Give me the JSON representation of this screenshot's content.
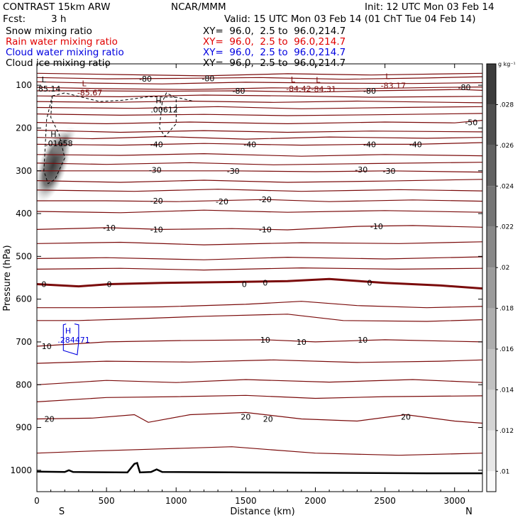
{
  "header": {
    "model": "CONTRAST 15km ARW",
    "org": "NCAR/MMM",
    "init": "Init: 12 UTC Mon 03 Feb 14",
    "fcst_label": "Fcst:",
    "fcst_value": "3 h",
    "valid": "Valid: 15 UTC Mon 03 Feb 14 (01 ChT Tue 04 Feb 14)",
    "fields": [
      {
        "name": "Snow mixing ratio",
        "xy": "XY=  96.0,  2.5 to  96.0,214.7",
        "color": "#000000"
      },
      {
        "name": "Rain water mixing ratio",
        "xy": "XY=  96.0,  2.5 to  96.0,214.7",
        "color": "#e00000"
      },
      {
        "name": "Cloud water mixing ratio",
        "xy": "XY=  96.0,  2.5 to  96.0,214.7",
        "color": "#0000e0"
      },
      {
        "name": "Cloud ice mixing ratio",
        "xy": "XY=  96.0,  2.5 to  96.0,214.7",
        "color": "#000000"
      }
    ]
  },
  "chart_data": {
    "type": "contour cross-section",
    "xlabel": "Distance (km)",
    "ylabel": "Pressure (hPa)",
    "xlim": [
      0,
      3200
    ],
    "ylim": [
      1050,
      50
    ],
    "x_ticks": [
      "0",
      "500",
      "1000",
      "1500",
      "2000",
      "2500",
      "3000"
    ],
    "y_ticks": [
      "100",
      "200",
      "300",
      "400",
      "500",
      "600",
      "700",
      "800",
      "900",
      "1000"
    ],
    "end_labels": {
      "left": "S",
      "right": "N"
    },
    "colorbar": {
      "unit": "g kg⁻¹",
      "ticks": [
        ".028",
        ".026",
        ".024",
        ".022",
        ".02",
        ".018",
        ".016",
        ".014",
        ".012",
        ".01"
      ]
    },
    "isotherm_color": "#7a0a0a",
    "isotherm_labels": [
      {
        "text": "-80",
        "x": 780,
        "p": 85
      },
      {
        "text": "-80",
        "x": 1230,
        "p": 84
      },
      {
        "text": "-80",
        "x": 1450,
        "p": 113
      },
      {
        "text": "-80",
        "x": 2390,
        "p": 113
      },
      {
        "text": "-80",
        "x": 3070,
        "p": 105
      },
      {
        "text": "-50",
        "x": 3120,
        "p": 187
      },
      {
        "text": "-40",
        "x": 860,
        "p": 238
      },
      {
        "text": "-40",
        "x": 1530,
        "p": 238
      },
      {
        "text": "-40",
        "x": 2390,
        "p": 238
      },
      {
        "text": "-40",
        "x": 2720,
        "p": 238
      },
      {
        "text": "-30",
        "x": 850,
        "p": 298
      },
      {
        "text": "-30",
        "x": 1410,
        "p": 300
      },
      {
        "text": "-30",
        "x": 2330,
        "p": 297
      },
      {
        "text": "-30",
        "x": 2530,
        "p": 300
      },
      {
        "text": "-20",
        "x": 860,
        "p": 370
      },
      {
        "text": "-20",
        "x": 1330,
        "p": 372
      },
      {
        "text": "-20",
        "x": 1640,
        "p": 367
      },
      {
        "text": "-10",
        "x": 520,
        "p": 433
      },
      {
        "text": "-10",
        "x": 860,
        "p": 437
      },
      {
        "text": "-10",
        "x": 1640,
        "p": 437
      },
      {
        "text": "-10",
        "x": 2440,
        "p": 430
      },
      {
        "text": "0",
        "x": 50,
        "p": 565
      },
      {
        "text": "0",
        "x": 520,
        "p": 565
      },
      {
        "text": "0",
        "x": 1490,
        "p": 565
      },
      {
        "text": "0",
        "x": 1640,
        "p": 562
      },
      {
        "text": "0",
        "x": 2390,
        "p": 562
      },
      {
        "text": "10",
        "x": 70,
        "p": 710
      },
      {
        "text": "10",
        "x": 1640,
        "p": 695
      },
      {
        "text": "10",
        "x": 1900,
        "p": 700
      },
      {
        "text": "10",
        "x": 2340,
        "p": 695
      },
      {
        "text": "20",
        "x": 90,
        "p": 880
      },
      {
        "text": "20",
        "x": 1500,
        "p": 875
      },
      {
        "text": "20",
        "x": 1660,
        "p": 880
      },
      {
        "text": "20",
        "x": 2650,
        "p": 875
      }
    ],
    "extrema_labels": [
      {
        "mark": "L",
        "value": "85.14",
        "x": 90,
        "p": 103,
        "color": "#000000"
      },
      {
        "mark": "L",
        "value": "-85.67",
        "x": 380,
        "p": 112,
        "color": "#7a0a0a"
      },
      {
        "mark": "L",
        "value": "-84.42",
        "x": 1880,
        "p": 103,
        "color": "#7a0a0a"
      },
      {
        "mark": "L",
        "value": "-84.31",
        "x": 2060,
        "p": 104,
        "color": "#7a0a0a"
      },
      {
        "mark": "L",
        "value": "-83.17",
        "x": 2560,
        "p": 96,
        "color": "#7a0a0a"
      },
      {
        "mark": "H",
        "value": ".00612",
        "x": 915,
        "p": 152,
        "color": "#000000"
      },
      {
        "mark": "H",
        "value": ".01658",
        "x": 160,
        "p": 231,
        "color": "#000000"
      },
      {
        "mark": "H",
        "value": ".284471",
        "x": 265,
        "p": 690,
        "color": "#0000e0"
      }
    ]
  }
}
